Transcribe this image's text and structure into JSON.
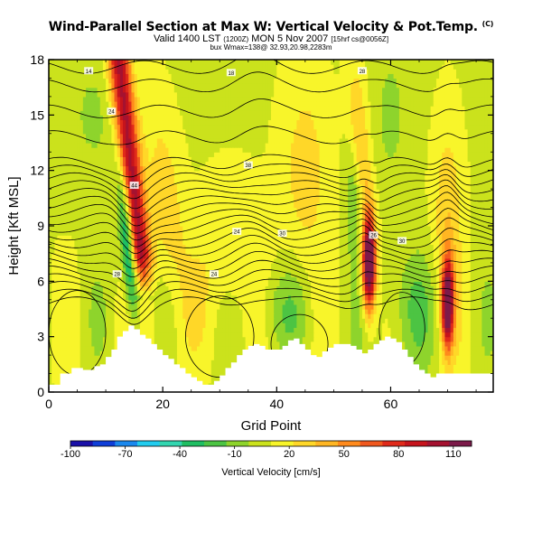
{
  "header": {
    "title": "Wind-Parallel Section at Max W: Vertical Velocity & Pot.Temp.",
    "title_badge": "(C)",
    "valid_prefix": "Valid 1400 LST",
    "valid_utc": "(1200Z)",
    "valid_date": "MON 5 Nov 2007",
    "valid_suffix": "[15hrf cs@0056Z]",
    "max_info": "bux Wmax=138@ 32.93,20.98,2283m"
  },
  "chart_data": {
    "type": "heatmap",
    "title": "Wind-Parallel Section at Max W: Vertical Velocity & Pot.Temp.",
    "xlabel": "Grid Point",
    "ylabel": "Height [Kft MSL]",
    "xlim": [
      0,
      78
    ],
    "ylim": [
      0,
      18
    ],
    "x_ticks": [
      0,
      20,
      40,
      60
    ],
    "y_ticks": [
      0,
      3,
      6,
      9,
      12,
      15,
      18
    ],
    "colorbar": {
      "label": "Vertical Velocity [cm/s]",
      "tick_labels": [
        "-100",
        "-70",
        "-40",
        "-10",
        "20",
        "50",
        "80",
        "110"
      ],
      "range": [
        -100,
        120
      ],
      "colors": [
        "#1a10a8",
        "#0f3ed8",
        "#1a88ee",
        "#22ccee",
        "#33d6b0",
        "#1fbe62",
        "#4cc443",
        "#8ed42c",
        "#cbe21c",
        "#f8f52a",
        "#ffd728",
        "#ffb623",
        "#ff8a1c",
        "#f0581e",
        "#e02a1a",
        "#c6141c",
        "#a51230",
        "#7c1a4a"
      ]
    },
    "terrain_heights_kft": [
      0.4,
      0.4,
      1.0,
      1.0,
      1.3,
      1.3,
      1.2,
      1.2,
      1.4,
      1.5,
      1.9,
      2.3,
      3.0,
      3.3,
      3.6,
      3.4,
      3.1,
      2.9,
      2.6,
      2.3,
      2.0,
      1.8,
      1.5,
      1.3,
      1.0,
      0.8,
      0.6,
      0.4,
      0.4,
      0.6,
      0.9,
      1.3,
      1.6,
      2.0,
      2.3,
      2.5,
      2.6,
      2.5,
      2.3,
      2.3,
      2.3,
      2.5,
      2.8,
      2.9,
      2.6,
      2.3,
      2.0,
      1.9,
      2.2,
      2.4,
      2.6,
      2.6,
      2.6,
      2.5,
      2.3,
      2.1,
      2.3,
      2.6,
      2.8,
      3.0,
      2.9,
      2.7,
      2.3,
      1.9,
      1.5,
      1.2,
      1.0,
      0.8,
      1.0,
      1.0,
      1.0,
      1.0,
      1.0,
      1.0,
      1.0,
      1.0,
      1.0,
      1.0,
      1.0
    ],
    "updrafts": [
      {
        "x": 16,
        "z_range": [
          5,
          18
        ],
        "peak_cm_s": 100
      },
      {
        "x": 56,
        "z_range": [
          5,
          10
        ],
        "peak_cm_s": 138
      },
      {
        "x": 70,
        "z_range": [
          3,
          7
        ],
        "peak_cm_s": 120
      },
      {
        "x": 20,
        "z_range": [
          0,
          6
        ],
        "peak_cm_s": 40
      }
    ],
    "downdrafts": [
      {
        "x": 14,
        "z_range": [
          5,
          12
        ],
        "peak_cm_s": -60
      },
      {
        "x": 54,
        "z_range": [
          8,
          14
        ],
        "peak_cm_s": -30
      },
      {
        "x": 40,
        "z_range": [
          3,
          6
        ],
        "peak_cm_s": -20
      }
    ],
    "theta_contour_labels": [
      "14",
      "18",
      "28",
      "24",
      "38",
      "44",
      "24",
      "30",
      "28",
      "24",
      "26",
      "30"
    ]
  }
}
